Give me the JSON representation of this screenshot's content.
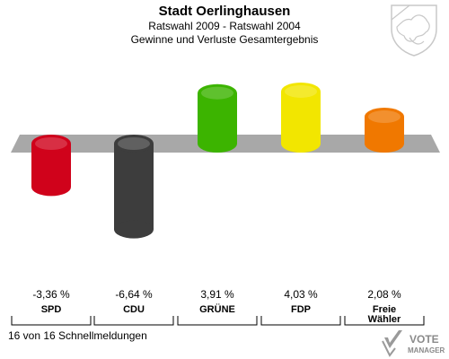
{
  "header": {
    "title": "Stadt Oerlinghausen",
    "subtitle_1": "Ratswahl 2009 - Ratswahl 2004",
    "subtitle_2": "Gewinne und Verluste Gesamtergebnis"
  },
  "footer": {
    "text": "16 von 16 Schnellmeldungen"
  },
  "logo": {
    "line1": "VOTE",
    "line2": "MANAGER"
  },
  "crest_icon": "coat-of-arms-icon",
  "chart_data": {
    "type": "bar",
    "categories": [
      "SPD",
      "CDU",
      "GRÜNE",
      "FDP",
      "Freie Wähler"
    ],
    "category_lines": [
      [
        "SPD"
      ],
      [
        "CDU"
      ],
      [
        "GRÜNE"
      ],
      [
        "FDP"
      ],
      [
        "Freie",
        "Wähler"
      ]
    ],
    "values": [
      -3.36,
      -6.64,
      3.91,
      4.03,
      2.08
    ],
    "value_labels": [
      "-3,36 %",
      "-6,64 %",
      "3,91 %",
      "4,03 %",
      "2,08 %"
    ],
    "colors": [
      "#d0021b",
      "#3d3d3d",
      "#3cb400",
      "#f2e600",
      "#f07800"
    ],
    "ylim": [
      -6.64,
      4.03
    ],
    "grid": false,
    "legend": "none"
  }
}
